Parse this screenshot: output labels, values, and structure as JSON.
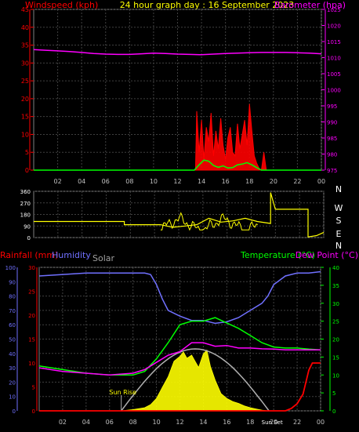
{
  "title": "24 hour graph day : 16 September 2023",
  "colors": {
    "windspeed": "#ff0000",
    "barometer": "#ff00ff",
    "gust_green": "#00ff00",
    "direction": "#ffff00",
    "humidity": "#7070ff",
    "solar": "#ffff00",
    "temperature": "#00ff00",
    "dewpoint": "#ff00ff",
    "rain": "#ff0000",
    "sun_curve": "#b0b0b0",
    "grid": "#404040"
  },
  "x_ticks": [
    "02",
    "04",
    "06",
    "08",
    "10",
    "12",
    "14",
    "16",
    "18",
    "20",
    "22",
    "00"
  ],
  "chart_data": [
    {
      "type": "line",
      "name": "wind-barometer",
      "left_label": "Windspeed (kph)",
      "right_label": "Barometer (hpa)",
      "left_ticks": [
        0,
        5,
        10,
        15,
        20,
        25,
        30,
        35,
        40,
        45
      ],
      "right_ticks": [
        975,
        980,
        985,
        990,
        995,
        1000,
        1005,
        1010,
        1015,
        1020,
        1025
      ],
      "left_ylim": [
        0,
        45
      ],
      "right_ylim": [
        975,
        1025
      ],
      "barometer_hpa": {
        "x": [
          0,
          1,
          2,
          3,
          4,
          5,
          6,
          7,
          8,
          9,
          10,
          11,
          12,
          13,
          14,
          15,
          16,
          17,
          18,
          19,
          20,
          21,
          22,
          23,
          24
        ],
        "y": [
          1012.5,
          1012.3,
          1012.1,
          1011.9,
          1011.6,
          1011.3,
          1011.1,
          1011.0,
          1011.0,
          1011.2,
          1011.4,
          1011.3,
          1011.1,
          1011.0,
          1010.9,
          1011.1,
          1011.3,
          1011.4,
          1011.5,
          1011.6,
          1011.6,
          1011.6,
          1011.5,
          1011.4,
          1011.2
        ]
      },
      "windspeed_kph": {
        "x": [
          0,
          13.5,
          13.6,
          13.8,
          14.0,
          14.2,
          14.4,
          14.6,
          14.8,
          15.0,
          15.2,
          15.4,
          15.6,
          15.8,
          16.0,
          16.2,
          16.4,
          16.6,
          16.8,
          17.0,
          17.2,
          17.4,
          17.6,
          17.8,
          18.0,
          18.2,
          18.4,
          18.6,
          18.8,
          19.0,
          19.2,
          19.4,
          19.6,
          19.8,
          24
        ],
        "y": [
          0,
          0,
          16.5,
          5,
          14,
          3,
          12,
          8,
          16,
          4,
          11,
          6,
          14.5,
          7,
          3,
          9,
          12,
          5,
          4,
          13,
          6,
          10,
          14,
          7,
          18.5,
          11,
          4,
          2,
          0.5,
          0,
          5,
          0,
          0,
          0,
          0
        ]
      },
      "wind_average_kph": {
        "x": [
          0,
          13.4,
          13.8,
          14.2,
          14.6,
          15.0,
          15.4,
          15.8,
          16.2,
          16.6,
          17.0,
          17.4,
          17.8,
          18.2,
          18.6,
          19.0,
          24
        ],
        "y": [
          0,
          0,
          1.5,
          2.8,
          2.5,
          1.3,
          0.8,
          1.2,
          0.6,
          0.7,
          1.5,
          1.7,
          2.1,
          1.5,
          0.7,
          0,
          0
        ]
      }
    },
    {
      "type": "line",
      "name": "wind-direction",
      "left_ticks": [
        0,
        90,
        180,
        270,
        360
      ],
      "right_labels": [
        "N",
        "W",
        "S",
        "E",
        "N"
      ],
      "ylim": [
        0,
        360
      ],
      "direction_deg": {
        "x": [
          0,
          7.5,
          7.5,
          10.5,
          11.5,
          12.5,
          13.5,
          14.5,
          15.5,
          16.5,
          17.5,
          18.5,
          19.6,
          19.6,
          20.0,
          21.0,
          22.0,
          22.7,
          22.7,
          23.4,
          24.0
        ],
        "y": [
          125,
          125,
          100,
          100,
          80,
          90,
          100,
          150,
          120,
          130,
          150,
          125,
          110,
          350,
          220,
          220,
          220,
          220,
          5,
          15,
          40
        ]
      }
    },
    {
      "type": "line",
      "name": "temperature-humidity-solar",
      "left_label": "Rainfall (mm)",
      "left_label2": "Humidity",
      "center_label": "Solar",
      "right_label": "Temperature (°C)",
      "right_label2": "Dew Point (°C)",
      "humidity_ticks": [
        0,
        10,
        20,
        30,
        40,
        50,
        60,
        70,
        80,
        90,
        100
      ],
      "rain_ticks": [
        0,
        5,
        10,
        15,
        20,
        25,
        30
      ],
      "temp_ticks": [
        0,
        5,
        10,
        15,
        20,
        25,
        30,
        35,
        40
      ],
      "humidity_ylim": [
        0,
        100
      ],
      "rain_ylim": [
        0,
        30
      ],
      "temp_ylim": [
        0,
        40
      ],
      "sun_rise_label": "Sun Rise",
      "sun_set_label": "Sun Set",
      "sunrise_hour": 7.0,
      "sunset_hour": 19.6,
      "humidity_pct": {
        "x": [
          0,
          2,
          4,
          6,
          8,
          9,
          9.5,
          10,
          10.5,
          11,
          12,
          13,
          14,
          15,
          16,
          17,
          18,
          19,
          19.5,
          20,
          21,
          22,
          23,
          24
        ],
        "y": [
          94,
          95,
          96,
          96,
          96,
          96,
          95,
          88,
          78,
          70,
          66,
          63,
          63,
          61,
          62,
          65,
          70,
          75,
          80,
          88,
          94,
          96,
          96,
          97
        ]
      },
      "temperature_c": {
        "x": [
          0,
          2,
          4,
          6,
          8,
          9,
          10,
          11,
          12,
          13,
          14,
          15,
          16,
          17,
          18,
          19,
          20,
          21,
          22,
          23,
          24
        ],
        "y": [
          12.5,
          11.5,
          10.5,
          10,
          10,
          11,
          14.5,
          19,
          24,
          25,
          25,
          26,
          24.5,
          23,
          21,
          19,
          17.8,
          17.5,
          17.5,
          17.2,
          17
        ]
      },
      "dewpoint_c": {
        "x": [
          0,
          2,
          4,
          6,
          8,
          9,
          10,
          11,
          12,
          13,
          14,
          15,
          16,
          17,
          18,
          19,
          20,
          21,
          22,
          23,
          24
        ],
        "y": [
          12,
          11,
          10.5,
          10,
          10.5,
          11.5,
          13.5,
          15.5,
          16.5,
          19,
          19,
          18,
          18.2,
          17.5,
          17.5,
          17.3,
          17.2,
          17,
          17,
          17,
          17
        ]
      },
      "solar_rel": {
        "x": [
          7,
          8,
          9,
          9.5,
          10,
          10.5,
          11,
          11.5,
          12,
          12.3,
          12.6,
          13,
          13.3,
          13.6,
          14,
          14.3,
          14.6,
          15,
          15.5,
          16,
          16.5,
          17,
          17.5,
          18,
          18.5,
          19,
          19.5
        ],
        "y": [
          0,
          0.02,
          0.05,
          0.1,
          0.2,
          0.38,
          0.55,
          0.8,
          0.88,
          0.95,
          0.85,
          0.9,
          0.8,
          0.7,
          0.92,
          0.98,
          0.72,
          0.5,
          0.28,
          0.2,
          0.15,
          0.12,
          0.08,
          0.05,
          0.03,
          0.01,
          0
        ]
      },
      "rainfall_mm": {
        "x": [
          0,
          21,
          21.5,
          22,
          22.5,
          23,
          23.3,
          23.7,
          24
        ],
        "y": [
          0,
          0,
          0.5,
          1.5,
          3.5,
          8.5,
          10,
          10,
          10
        ]
      }
    }
  ]
}
